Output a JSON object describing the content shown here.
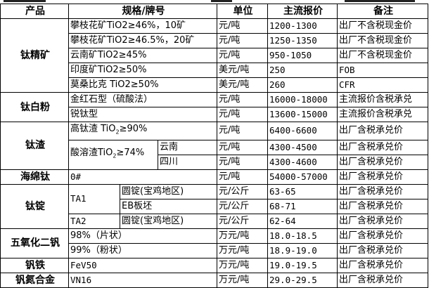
{
  "headers": {
    "product": "产品",
    "spec": "规格/牌号",
    "unit": "单位",
    "price": "主流报价",
    "note": "备注"
  },
  "rows": {
    "ti_conc": {
      "product": "钛精矿",
      "items": [
        {
          "spec": "攀枝花矿TiO2≥46%，10矿",
          "unit": "元/吨",
          "price": "1200-1300",
          "note": "出厂不含税现金价"
        },
        {
          "spec": "攀枝花矿TiO2≥46.5%，20矿",
          "unit": "元/吨",
          "price": "1250-1350",
          "note": "出厂不含税现金价"
        },
        {
          "spec": "云南矿TiO2≥45%",
          "unit": "元/吨",
          "price": "950-1050",
          "note": "出厂不含税现金价"
        },
        {
          "spec": "印度矿TiO2≥50%",
          "unit": "美元/吨",
          "price": "250",
          "note": "FOB"
        },
        {
          "spec": "莫桑比克 TiO2≥50%",
          "unit": "美元/吨",
          "price": "260",
          "note": "CFR"
        }
      ]
    },
    "tio2": {
      "product": "钛白粉",
      "items": [
        {
          "spec": "金红石型（硫酸法）",
          "unit": "元/吨",
          "price": "16000-18000",
          "note": "主流报价含税承兑"
        },
        {
          "spec": "锐钛型",
          "unit": "元/吨",
          "price": "13600-15000",
          "note": "主流报价含税承兑"
        }
      ]
    },
    "slag": {
      "product": "钛渣",
      "items": [
        {
          "spec_a": "高钛渣 TiO",
          "spec_sub": "2",
          "spec_b": "≥90%",
          "unit": "元/吨",
          "price": "6400-6600",
          "note": "出厂含税承兑价"
        },
        {
          "spec_a": "酸溶渣TiO",
          "spec_sub": "2",
          "spec_b": "≥74%",
          "region": "云南",
          "unit": "元/吨",
          "price": "4300-4500",
          "note": "出厂含税承兑价"
        },
        {
          "region": "四川",
          "unit": "元/吨",
          "price": "4300-4600",
          "note": "出厂含税承兑价"
        }
      ]
    },
    "sponge": {
      "product": "海绵钛",
      "items": [
        {
          "spec": "0#",
          "unit": "元/吨",
          "price": "54000-57000",
          "note": "出厂含税承兑价"
        }
      ]
    },
    "ingot": {
      "product": "钛锭",
      "items": [
        {
          "grade": "TA1",
          "spec": "圆锭(宝鸡地区)",
          "unit": "元/公斤",
          "price": "63-65",
          "note": "出厂含税承兑价"
        },
        {
          "spec": "EB板坯",
          "unit": "元/公斤",
          "price": "68-71",
          "note": "出厂含税承兑价"
        },
        {
          "grade": "TA2",
          "spec": "圆锭(宝鸡地区)",
          "unit": "元/公斤",
          "price": "62-64",
          "note": "出厂含税承兑价"
        }
      ]
    },
    "v2o5": {
      "product": "五氧化二钒",
      "items": [
        {
          "spec": "98%（片状）",
          "unit": "万元/吨",
          "price": "18.0-18.5",
          "note": "出厂含税承兑价"
        },
        {
          "spec": "99%（粉状）",
          "unit": "万元/吨",
          "price": "18.9-19.0",
          "note": "出厂含税承兑价"
        }
      ]
    },
    "fev": {
      "product": "钒铁",
      "items": [
        {
          "spec": "FeV50",
          "unit": "万元/吨",
          "price": "19.0-19.5",
          "note": "出厂含税承兑价"
        }
      ]
    },
    "vn": {
      "product": "钒氮合金",
      "items": [
        {
          "spec": "VN16",
          "unit": "万元/吨",
          "price": "29.0-29.5",
          "note": "出厂含税承兑价"
        }
      ]
    }
  }
}
